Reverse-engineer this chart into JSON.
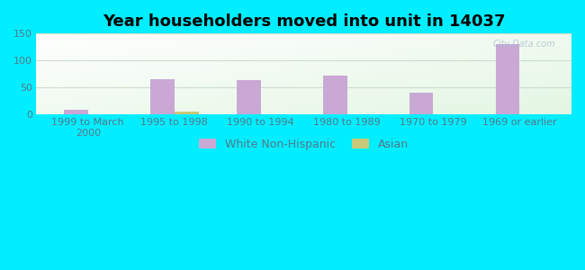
{
  "title": "Year householders moved into unit in 14037",
  "categories": [
    "1999 to March\n2000",
    "1995 to 1998",
    "1990 to 1994",
    "1980 to 1989",
    "1970 to 1979",
    "1969 or earlier"
  ],
  "white_values": [
    8,
    66,
    63,
    73,
    40,
    130
  ],
  "asian_values": [
    0,
    6,
    0,
    0,
    0,
    0
  ],
  "white_color": "#c9a8d4",
  "asian_color": "#c8c878",
  "background_outer": "#00eeff",
  "ylim": [
    0,
    150
  ],
  "yticks": [
    0,
    50,
    100,
    150
  ],
  "bar_width": 0.28,
  "title_fontsize": 13,
  "tick_fontsize": 8,
  "legend_fontsize": 9,
  "watermark": "City-Data.com",
  "tick_color": "#557788",
  "grid_color": "#ccddcc"
}
